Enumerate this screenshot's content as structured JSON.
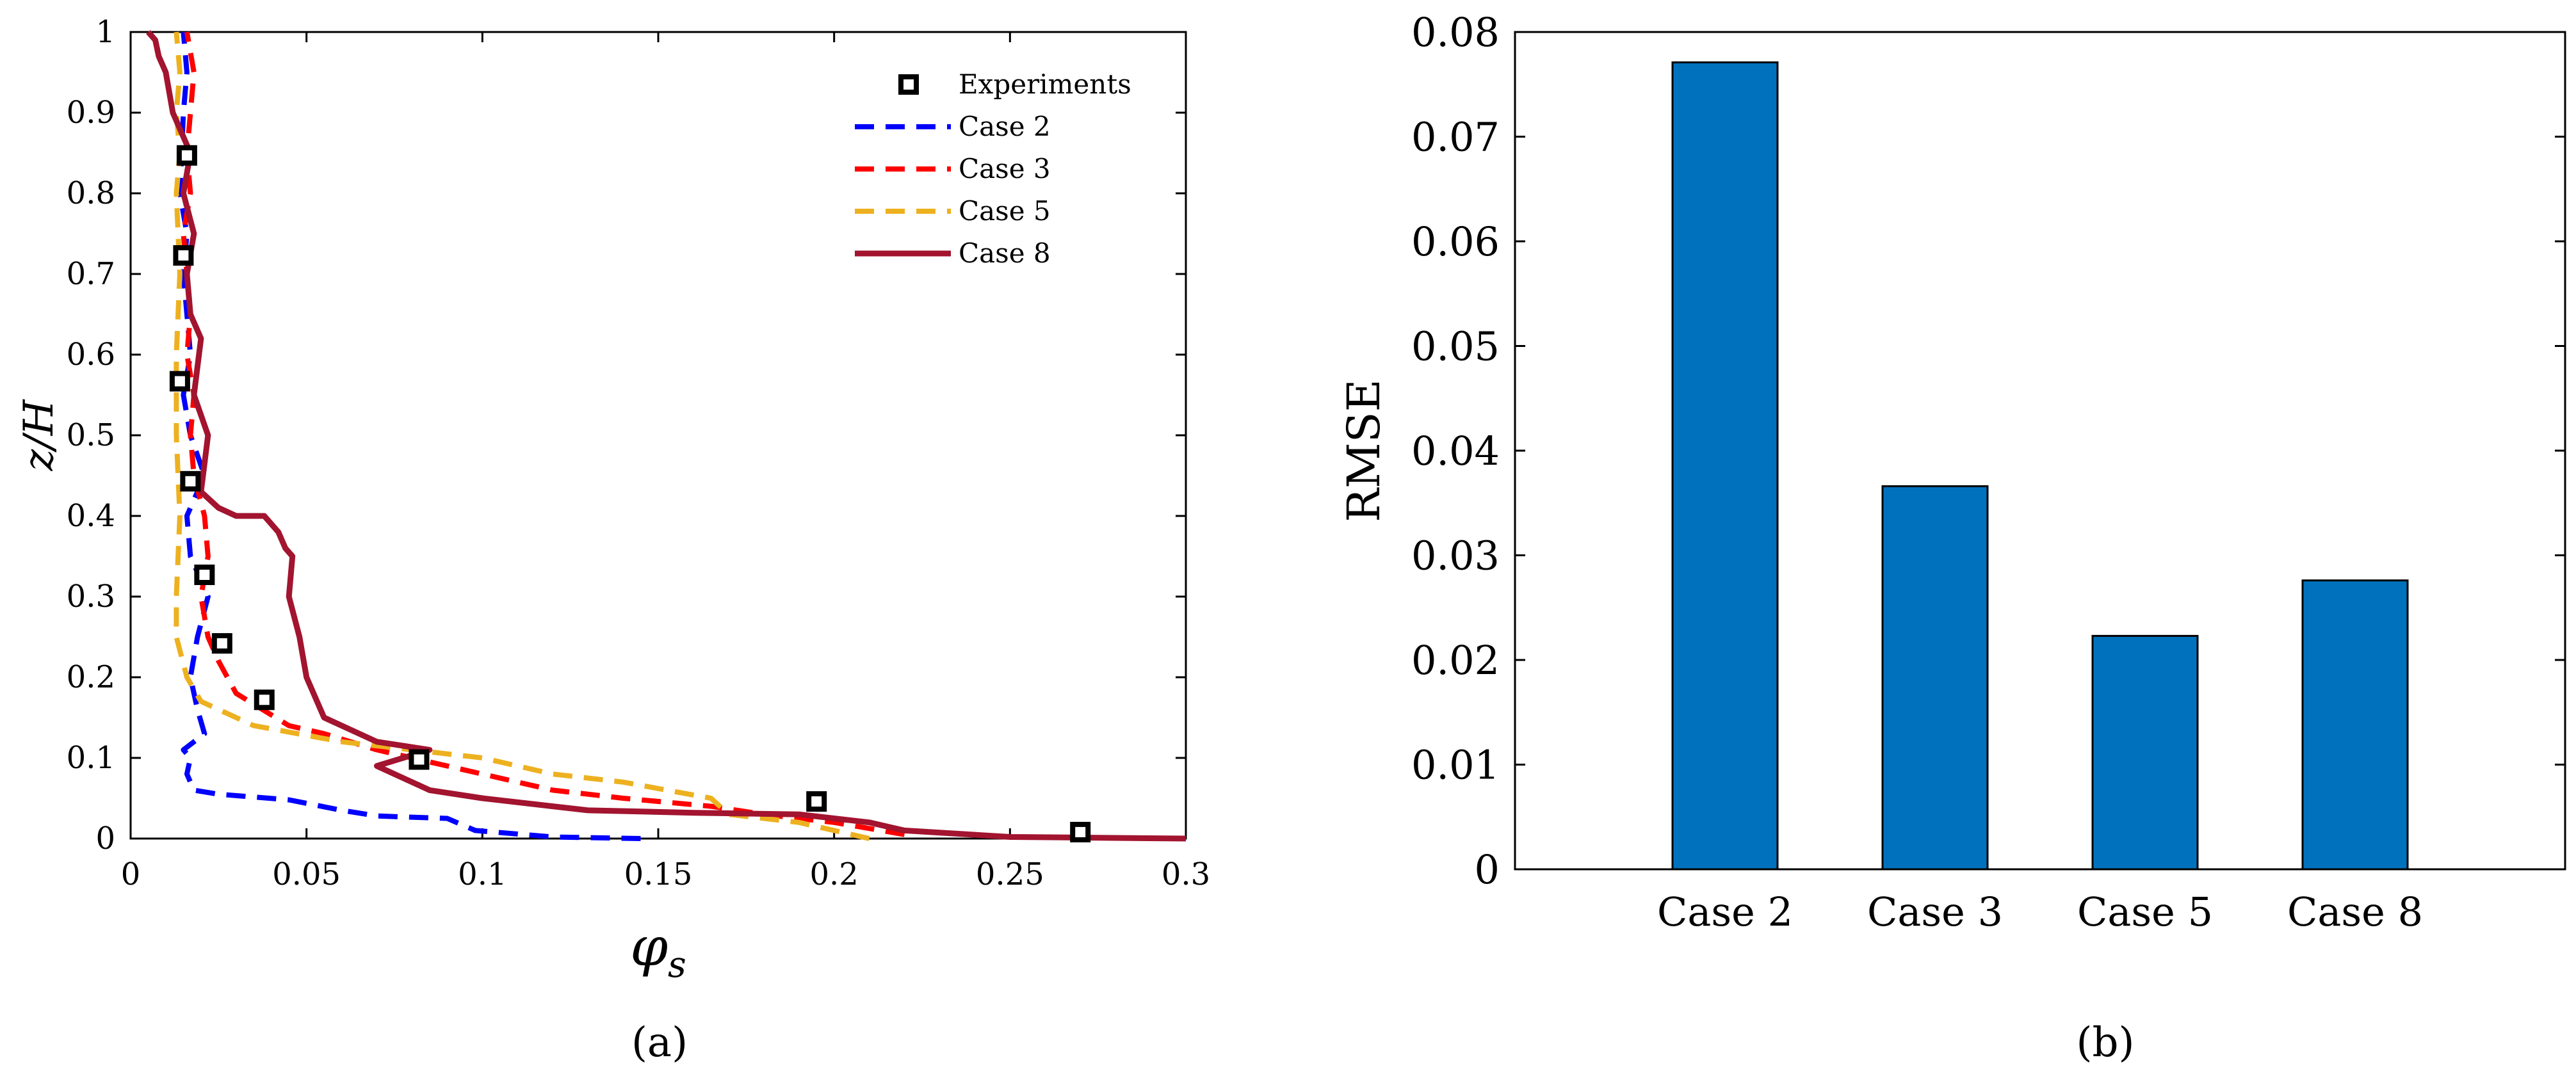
{
  "chart_data": [
    {
      "type": "line",
      "panel_caption": "(a)",
      "xlabel": "φ_s",
      "ylabel": "z/H",
      "xlim": [
        0,
        0.3
      ],
      "ylim": [
        0,
        1
      ],
      "xticks": [
        "0",
        "0.05",
        "0.1",
        "0.15",
        "0.2",
        "0.25",
        "0.3"
      ],
      "yticks": [
        "0",
        "0.1",
        "0.2",
        "0.3",
        "0.4",
        "0.5",
        "0.6",
        "0.7",
        "0.8",
        "0.9",
        "1"
      ],
      "legend_position": "top-right",
      "experiments": {
        "name": "Experiments",
        "x": [
          0.016,
          0.015,
          0.014,
          0.017,
          0.021,
          0.026,
          0.038,
          0.082,
          0.195,
          0.27
        ],
        "y": [
          0.847,
          0.723,
          0.567,
          0.443,
          0.327,
          0.242,
          0.172,
          0.098,
          0.046,
          0.008
        ]
      },
      "series": [
        {
          "name": "Case 2",
          "color": "#0000ff",
          "style": "dashed",
          "x": [
            0.145,
            0.12,
            0.098,
            0.09,
            0.07,
            0.06,
            0.045,
            0.025,
            0.018,
            0.016,
            0.017,
            0.015,
            0.021,
            0.019,
            0.017,
            0.019,
            0.022,
            0.017,
            0.016,
            0.021,
            0.017,
            0.015,
            0.017,
            0.015,
            0.016,
            0.014,
            0.015,
            0.016,
            0.015
          ],
          "y": [
            0.0,
            0.002,
            0.01,
            0.025,
            0.028,
            0.035,
            0.048,
            0.055,
            0.06,
            0.08,
            0.1,
            0.11,
            0.13,
            0.16,
            0.2,
            0.25,
            0.3,
            0.35,
            0.4,
            0.45,
            0.5,
            0.55,
            0.6,
            0.7,
            0.75,
            0.8,
            0.9,
            0.95,
            1.0
          ]
        },
        {
          "name": "Case 3",
          "color": "#ff0000",
          "style": "dashed",
          "x": [
            0.22,
            0.2,
            0.18,
            0.165,
            0.14,
            0.12,
            0.1,
            0.08,
            0.07,
            0.055,
            0.045,
            0.03,
            0.025,
            0.022,
            0.02,
            0.022,
            0.021,
            0.018,
            0.017,
            0.018,
            0.016,
            0.017,
            0.016,
            0.015,
            0.017,
            0.016,
            0.018,
            0.016
          ],
          "y": [
            0.005,
            0.02,
            0.03,
            0.04,
            0.05,
            0.06,
            0.08,
            0.1,
            0.11,
            0.13,
            0.14,
            0.18,
            0.22,
            0.25,
            0.3,
            0.35,
            0.4,
            0.45,
            0.5,
            0.55,
            0.6,
            0.65,
            0.7,
            0.75,
            0.8,
            0.85,
            0.95,
            1.0
          ]
        },
        {
          "name": "Case 5",
          "color": "#edb120",
          "style": "dashed",
          "x": [
            0.21,
            0.19,
            0.17,
            0.165,
            0.14,
            0.12,
            0.1,
            0.08,
            0.06,
            0.035,
            0.02,
            0.016,
            0.013,
            0.013,
            0.014,
            0.013,
            0.013,
            0.014,
            0.013,
            0.014,
            0.013,
            0.014,
            0.013
          ],
          "y": [
            0.0,
            0.02,
            0.03,
            0.05,
            0.07,
            0.08,
            0.1,
            0.11,
            0.12,
            0.14,
            0.17,
            0.2,
            0.25,
            0.3,
            0.4,
            0.5,
            0.6,
            0.7,
            0.8,
            0.85,
            0.9,
            0.95,
            1.0
          ]
        },
        {
          "name": "Case 8",
          "color": "#a2142f",
          "style": "solid",
          "x": [
            0.3,
            0.25,
            0.22,
            0.21,
            0.19,
            0.16,
            0.13,
            0.12,
            0.1,
            0.085,
            0.07,
            0.085,
            0.07,
            0.055,
            0.05,
            0.048,
            0.045,
            0.046,
            0.044,
            0.042,
            0.04,
            0.038,
            0.03,
            0.025,
            0.02,
            0.022,
            0.018,
            0.02,
            0.017,
            0.016,
            0.018,
            0.015,
            0.017,
            0.012,
            0.01,
            0.008,
            0.007,
            0.005
          ],
          "y": [
            0.0,
            0.002,
            0.01,
            0.02,
            0.03,
            0.032,
            0.035,
            0.04,
            0.05,
            0.06,
            0.09,
            0.11,
            0.12,
            0.15,
            0.2,
            0.25,
            0.3,
            0.35,
            0.36,
            0.38,
            0.39,
            0.4,
            0.4,
            0.41,
            0.43,
            0.5,
            0.55,
            0.62,
            0.65,
            0.7,
            0.75,
            0.8,
            0.85,
            0.9,
            0.95,
            0.97,
            0.99,
            1.0
          ]
        }
      ]
    },
    {
      "type": "bar",
      "panel_caption": "(b)",
      "categories": [
        "Case 2",
        "Case 3",
        "Case 5",
        "Case 8"
      ],
      "values": [
        0.0771,
        0.0366,
        0.0223,
        0.0276
      ],
      "ylabel": "RMSE",
      "xlabel": "",
      "ylim": [
        0,
        0.08
      ],
      "yticks": [
        "0",
        "0.01",
        "0.02",
        "0.03",
        "0.04",
        "0.05",
        "0.06",
        "0.07",
        "0.08"
      ],
      "bar_color": "#0072bd"
    }
  ]
}
